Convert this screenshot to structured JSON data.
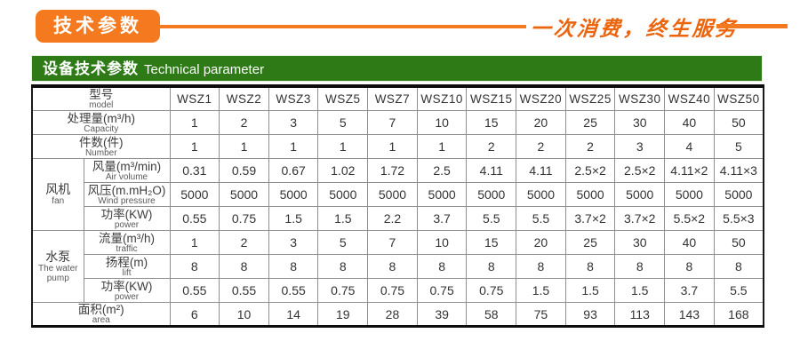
{
  "colors": {
    "accent_orange": "#f5791e",
    "header_green": "#2e7a17",
    "slogan_orange": "#ea650d"
  },
  "top": {
    "badge_label": "技术参数",
    "slogan": "一次消费，终生服务"
  },
  "section": {
    "title_zh": "设备技术参数",
    "title_en": "Technical parameter"
  },
  "table": {
    "header": {
      "label_zh": "型号",
      "label_en": "model",
      "models": [
        "WSZ1",
        "WSZ2",
        "WSZ3",
        "WSZ5",
        "WSZ7",
        "WSZ10",
        "WSZ15",
        "WSZ20",
        "WSZ25",
        "WSZ30",
        "WSZ40",
        "WSZ50"
      ]
    },
    "groups": {
      "fan": {
        "zh": "风机",
        "en": "fan"
      },
      "pump": {
        "zh": "水泵",
        "en": "The water pump"
      }
    },
    "rows": [
      {
        "id": "capacity",
        "group": null,
        "zh": "处理量(m³/h)",
        "en": "Capacity",
        "align": "center",
        "values": [
          "1",
          "2",
          "3",
          "5",
          "7",
          "10",
          "15",
          "20",
          "25",
          "30",
          "40",
          "50"
        ]
      },
      {
        "id": "number",
        "group": null,
        "zh": "件数(件)",
        "en": "Number",
        "align": "center",
        "values": [
          "1",
          "1",
          "1",
          "1",
          "1",
          "1",
          "2",
          "2",
          "2",
          "3",
          "4",
          "5"
        ]
      },
      {
        "id": "air-volume",
        "group": "fan",
        "zh": "风量(m³/min)",
        "en": "Air volume",
        "align": "left",
        "values": [
          "0.31",
          "0.59",
          "0.67",
          "1.02",
          "1.72",
          "2.5",
          "4.11",
          "4.11",
          "2.5×2",
          "2.5×2",
          "4.11×2",
          "4.11×3"
        ]
      },
      {
        "id": "wind-pressure",
        "group": "fan",
        "zh": "风压(m.mH₂O)",
        "en": "Wind pressure",
        "align": "left",
        "values": [
          "5000",
          "5000",
          "5000",
          "5000",
          "5000",
          "5000",
          "5000",
          "5000",
          "5000",
          "5000",
          "5000",
          "5000"
        ]
      },
      {
        "id": "fan-power",
        "group": "fan",
        "zh": "功率(KW)",
        "en": "power",
        "align": "left",
        "values": [
          "0.55",
          "0.75",
          "1.5",
          "1.5",
          "2.2",
          "3.7",
          "5.5",
          "5.5",
          "3.7×2",
          "3.7×2",
          "5.5×2",
          "5.5×3"
        ]
      },
      {
        "id": "flow",
        "group": "pump",
        "zh": "流量(m³/h)",
        "en": "traffic",
        "align": "left",
        "values": [
          "1",
          "2",
          "3",
          "5",
          "7",
          "10",
          "15",
          "20",
          "25",
          "30",
          "40",
          "50"
        ]
      },
      {
        "id": "lift",
        "group": "pump",
        "zh": "扬程(m)",
        "en": "lift",
        "align": "left",
        "values": [
          "8",
          "8",
          "8",
          "8",
          "8",
          "8",
          "8",
          "8",
          "8",
          "8",
          "8",
          "8"
        ]
      },
      {
        "id": "pump-power",
        "group": "pump",
        "zh": "功率(KW)",
        "en": "power",
        "align": "left",
        "values": [
          "0.55",
          "0.55",
          "0.55",
          "0.75",
          "0.75",
          "0.75",
          "0.75",
          "1.5",
          "1.5",
          "1.5",
          "3.7",
          "5.5"
        ]
      },
      {
        "id": "area",
        "group": null,
        "zh": "面积(m²)",
        "en": "area",
        "align": "indent",
        "values": [
          "6",
          "10",
          "14",
          "19",
          "28",
          "39",
          "58",
          "75",
          "93",
          "113",
          "143",
          "168"
        ]
      }
    ]
  }
}
